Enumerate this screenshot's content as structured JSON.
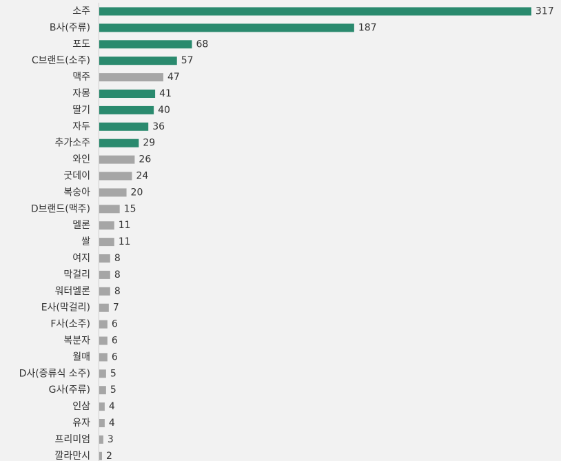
{
  "chart_data": {
    "type": "bar",
    "orientation": "horizontal",
    "title": "",
    "xlabel": "",
    "ylabel": "",
    "xlim": [
      0,
      317
    ],
    "grid": false,
    "legend": "none",
    "colors": {
      "highlight": "#2a8a6e",
      "normal": "#a6a6a6"
    },
    "categories": [
      "소주",
      "B사(주류)",
      "포도",
      "C브랜드(소주)",
      "맥주",
      "자몽",
      "딸기",
      "자두",
      "추가소주",
      "와인",
      "굿데이",
      "복숭아",
      "D브랜드(맥주)",
      "멜론",
      "쌀",
      "여지",
      "막걸리",
      "워터멜론",
      "E사(막걸리)",
      "F사(소주)",
      "복분자",
      "월매",
      "D사(증류식 소주)",
      "G사(주류)",
      "인삼",
      "유자",
      "프리미엄",
      "깔라만시"
    ],
    "values": [
      317,
      187,
      68,
      57,
      47,
      41,
      40,
      36,
      29,
      26,
      24,
      20,
      15,
      11,
      11,
      8,
      8,
      8,
      7,
      6,
      6,
      6,
      5,
      5,
      4,
      4,
      3,
      2
    ],
    "highlighted": [
      true,
      true,
      true,
      true,
      false,
      true,
      true,
      true,
      true,
      false,
      false,
      false,
      false,
      false,
      false,
      false,
      false,
      false,
      false,
      false,
      false,
      false,
      false,
      false,
      false,
      false,
      false,
      false
    ]
  }
}
